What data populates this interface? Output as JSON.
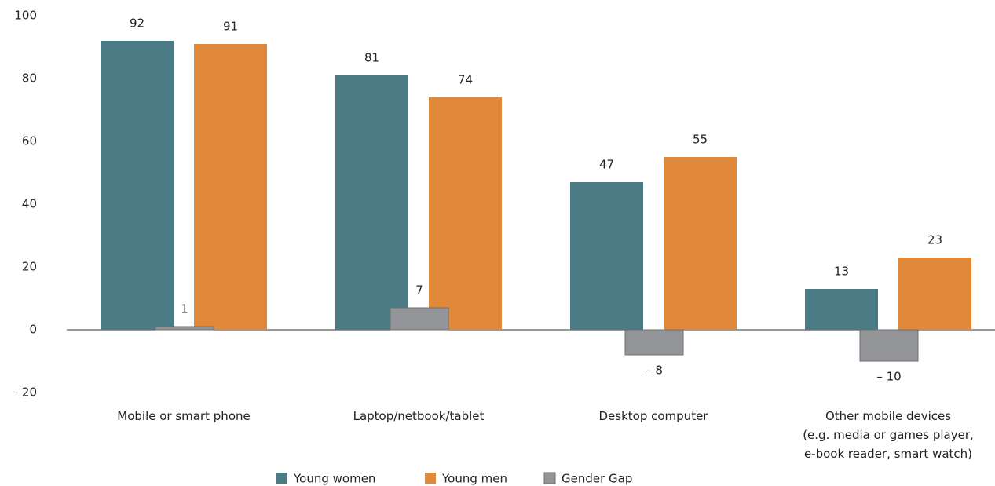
{
  "chart_data": {
    "type": "bar",
    "categories": [
      "Mobile or smart phone",
      "Laptop/netbook/tablet",
      "Desktop computer",
      "Other mobile devices\n(e.g. media or games player,\ne-book reader, smart watch)"
    ],
    "series": [
      {
        "name": "Young women",
        "color": "#4b7c85",
        "values": [
          92,
          81,
          47,
          13
        ]
      },
      {
        "name": "Young men",
        "color": "#e0893a",
        "values": [
          91,
          74,
          55,
          23
        ]
      },
      {
        "name": "Gender Gap",
        "color": "#939598",
        "values": [
          1,
          7,
          -8,
          -10
        ],
        "value_labels": [
          "1",
          "7",
          "– 8",
          "– 10"
        ]
      }
    ],
    "ylim": [
      -20,
      100
    ],
    "yticks": [
      {
        "value": -20,
        "label": "– 20"
      },
      0,
      20,
      40,
      60,
      80,
      100
    ],
    "grid": false,
    "legend": "bottom"
  }
}
